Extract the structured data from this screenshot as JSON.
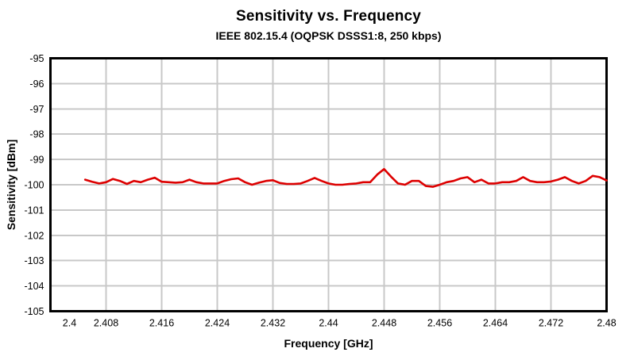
{
  "chart_data": {
    "type": "line",
    "title": "Sensitivity vs. Frequency",
    "subtitle": "IEEE 802.15.4 (OQPSK DSSS1:8, 250 kbps)",
    "xlabel": "Frequency [GHz]",
    "ylabel": "Sensitivity [dBm]",
    "xlim": [
      2.4,
      2.48
    ],
    "ylim": [
      -105,
      -95
    ],
    "grid": true,
    "legend": "none",
    "line_color": "#dd0000",
    "grid_color": "#c8c8c8",
    "frame_color": "#000000",
    "x_ticks": [
      2.4,
      2.408,
      2.416,
      2.424,
      2.432,
      2.44,
      2.448,
      2.456,
      2.464,
      2.472,
      2.48
    ],
    "x_tick_labels": [
      "2.4",
      "2.408",
      "2.416",
      "2.424",
      "2.432",
      "2.44",
      "2.448",
      "2.456",
      "2.464",
      "2.472",
      "2.48"
    ],
    "y_ticks": [
      -95,
      -96,
      -97,
      -98,
      -99,
      -100,
      -101,
      -102,
      -103,
      -104,
      -105
    ],
    "y_tick_labels": [
      "-95",
      "-96",
      "-97",
      "-98",
      "-99",
      "-100",
      "-101",
      "-102",
      "-103",
      "-104",
      "-105"
    ],
    "series": [
      {
        "name": "Sensitivity",
        "x": [
          2.405,
          2.406,
          2.407,
          2.408,
          2.409,
          2.41,
          2.411,
          2.412,
          2.413,
          2.414,
          2.415,
          2.416,
          2.417,
          2.418,
          2.419,
          2.42,
          2.421,
          2.422,
          2.423,
          2.424,
          2.425,
          2.426,
          2.427,
          2.428,
          2.429,
          2.43,
          2.431,
          2.432,
          2.433,
          2.434,
          2.435,
          2.436,
          2.437,
          2.438,
          2.439,
          2.44,
          2.441,
          2.442,
          2.443,
          2.444,
          2.445,
          2.446,
          2.447,
          2.448,
          2.449,
          2.45,
          2.451,
          2.452,
          2.453,
          2.454,
          2.455,
          2.456,
          2.457,
          2.458,
          2.459,
          2.46,
          2.461,
          2.462,
          2.463,
          2.464,
          2.465,
          2.466,
          2.467,
          2.468,
          2.469,
          2.47,
          2.471,
          2.472,
          2.473,
          2.474,
          2.475,
          2.476,
          2.477,
          2.478,
          2.479,
          2.48
        ],
        "y": [
          -99.8,
          -99.88,
          -99.95,
          -99.9,
          -99.77,
          -99.85,
          -99.97,
          -99.85,
          -99.9,
          -99.8,
          -99.72,
          -99.88,
          -99.9,
          -99.92,
          -99.9,
          -99.8,
          -99.9,
          -99.95,
          -99.95,
          -99.95,
          -99.85,
          -99.78,
          -99.75,
          -99.9,
          -100.0,
          -99.92,
          -99.85,
          -99.82,
          -99.93,
          -99.97,
          -99.97,
          -99.95,
          -99.85,
          -99.73,
          -99.85,
          -99.95,
          -100.0,
          -100.0,
          -99.97,
          -99.95,
          -99.9,
          -99.9,
          -99.6,
          -99.38,
          -99.68,
          -99.95,
          -100.0,
          -99.85,
          -99.85,
          -100.05,
          -100.08,
          -100.0,
          -99.9,
          -99.85,
          -99.75,
          -99.7,
          -99.9,
          -99.8,
          -99.95,
          -99.95,
          -99.9,
          -99.9,
          -99.85,
          -99.7,
          -99.85,
          -99.9,
          -99.9,
          -99.87,
          -99.8,
          -99.7,
          -99.85,
          -99.95,
          -99.85,
          -99.65,
          -99.7,
          -99.83
        ]
      }
    ]
  }
}
